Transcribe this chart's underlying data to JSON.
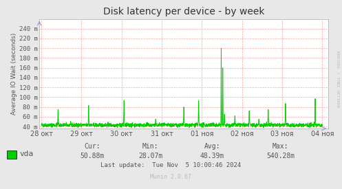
{
  "title": "Disk latency per device - by week",
  "ylabel": "Average IO Wait (seconds)",
  "line_color": "#00cc00",
  "background_color": "#e8e8e8",
  "plot_bg_color": "#ffffff",
  "grid_color": "#ff9999",
  "ylim_min": 0.036,
  "ylim_max": 0.26,
  "yticks": [
    0.04,
    0.06,
    0.08,
    0.1,
    0.12,
    0.14,
    0.16,
    0.18,
    0.2,
    0.22,
    0.24
  ],
  "ytick_labels": [
    "40 m",
    "60 m",
    "80 m",
    "100 m",
    "120 m",
    "140 m",
    "160 m",
    "180 m",
    "200 m",
    "220 m",
    "240 m"
  ],
  "xtick_labels": [
    "28 окт",
    "29 окт",
    "30 окт",
    "31 окт",
    "01 ноя",
    "02 ноя",
    "03 ноя",
    "04 ноя"
  ],
  "xtick_pos": [
    0,
    1,
    2,
    3,
    4,
    5,
    6,
    7
  ],
  "legend_label": "vda",
  "legend_color": "#00cc00",
  "cur_label": "Cur:",
  "cur_val": "50.88m",
  "min_label": "Min:",
  "min_val": "28.07m",
  "avg_label": "Avg:",
  "avg_val": "48.39m",
  "max_label": "Max:",
  "max_val": "540.28m",
  "last_update": "Last update:  Tue Nov  5 10:00:46 2024",
  "munin_version": "Munin 2.0.67",
  "watermark": "RRDTOOL / TOBI OETIKER",
  "title_color": "#333333",
  "tick_color": "#555555",
  "stats_color": "#555555",
  "watermark_color": "#bbbbbb",
  "spine_color": "#aaaaaa",
  "arrow_color": "#9999cc"
}
